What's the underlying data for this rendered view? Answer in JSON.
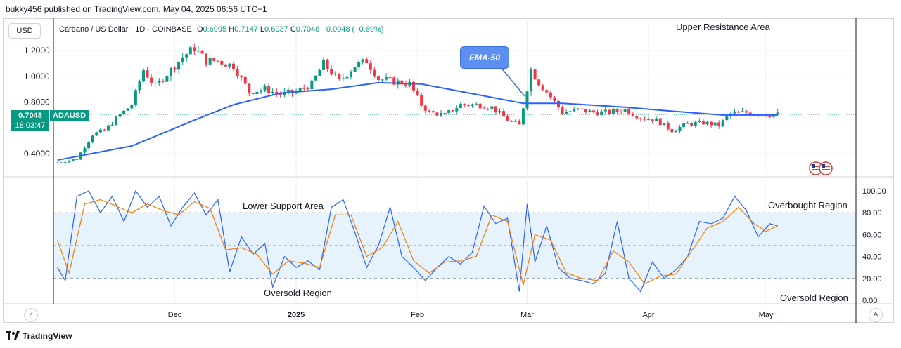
{
  "header": {
    "published_line": "bukky456 published on TradingView.com, May 04, 2025 06:56 UTC+1"
  },
  "toolbar": {
    "currency_button": "USD",
    "z_button": "Z",
    "a_button": "A"
  },
  "legend": {
    "symbol_text": "Cardano / US Dollar · 1D · COINBASE",
    "open_label": "O",
    "open": "0.6995",
    "high_label": "H",
    "high": "0.7147",
    "low_label": "L",
    "low": "0.6937",
    "close_label": "C",
    "close": "0.7048",
    "change": "+0.0048 (+0.69%)"
  },
  "price_tag": {
    "price": "0.7048",
    "countdown": "18:03:47",
    "symbol": "ADAUSD"
  },
  "annotations": {
    "upper_resistance": "Upper Resistance Area",
    "ema_callout": "EMA-50",
    "lower_support": "Lower Support Area",
    "oversold_left": "Oversold Region",
    "overbought": "Overbought Region",
    "oversold_right": "Oversold Region"
  },
  "footer": {
    "brand": "TradingView"
  },
  "colors": {
    "up": "#089981",
    "down": "#f23645",
    "ema": "#2962ff",
    "stoch_k": "#2962ff",
    "stoch_d": "#f57c00",
    "band": "#dceefb",
    "price_line": "#089981"
  },
  "chart_data": [
    {
      "type": "candlestick",
      "title": "",
      "y_ticks": [
        "1.2000",
        "1.0000",
        "0.8000",
        "0.4000"
      ],
      "y_tick_values": [
        1.2,
        1.0,
        0.8,
        0.4
      ],
      "x_labels": [
        "Dec",
        "2025",
        "Feb",
        "Mar",
        "Apr",
        "May"
      ],
      "current_price": 0.7048,
      "close_path": [
        [
          "2024-11-01",
          0.33
        ],
        [
          "2024-11-06",
          0.36
        ],
        [
          "2024-11-10",
          0.55
        ],
        [
          "2024-11-13",
          0.58
        ],
        [
          "2024-11-17",
          0.7
        ],
        [
          "2024-11-20",
          0.78
        ],
        [
          "2024-11-23",
          1.05
        ],
        [
          "2024-11-26",
          0.92
        ],
        [
          "2024-11-30",
          1.05
        ],
        [
          "2024-12-03",
          1.15
        ],
        [
          "2024-12-06",
          1.22
        ],
        [
          "2024-12-09",
          1.12
        ],
        [
          "2024-12-12",
          1.12
        ],
        [
          "2024-12-16",
          1.08
        ],
        [
          "2024-12-20",
          0.88
        ],
        [
          "2024-12-24",
          0.9
        ],
        [
          "2024-12-28",
          0.86
        ],
        [
          "2025-01-01",
          0.88
        ],
        [
          "2025-01-05",
          0.94
        ],
        [
          "2025-01-08",
          1.1
        ],
        [
          "2025-01-12",
          0.96
        ],
        [
          "2025-01-16",
          1.08
        ],
        [
          "2025-01-19",
          1.12
        ],
        [
          "2025-01-22",
          0.98
        ],
        [
          "2025-01-26",
          0.96
        ],
        [
          "2025-01-30",
          0.94
        ],
        [
          "2025-02-02",
          0.78
        ],
        [
          "2025-02-04",
          0.72
        ],
        [
          "2025-02-08",
          0.7
        ],
        [
          "2025-02-12",
          0.78
        ],
        [
          "2025-02-16",
          0.78
        ],
        [
          "2025-02-20",
          0.76
        ],
        [
          "2025-02-24",
          0.66
        ],
        [
          "2025-02-27",
          0.62
        ],
        [
          "2025-03-02",
          1.05
        ],
        [
          "2025-03-04",
          0.95
        ],
        [
          "2025-03-06",
          0.88
        ],
        [
          "2025-03-10",
          0.72
        ],
        [
          "2025-03-14",
          0.74
        ],
        [
          "2025-03-18",
          0.72
        ],
        [
          "2025-03-22",
          0.72
        ],
        [
          "2025-03-26",
          0.74
        ],
        [
          "2025-03-30",
          0.68
        ],
        [
          "2025-04-03",
          0.66
        ],
        [
          "2025-04-07",
          0.58
        ],
        [
          "2025-04-11",
          0.63
        ],
        [
          "2025-04-15",
          0.64
        ],
        [
          "2025-04-19",
          0.62
        ],
        [
          "2025-04-22",
          0.71
        ],
        [
          "2025-04-26",
          0.72
        ],
        [
          "2025-04-30",
          0.7
        ],
        [
          "2025-05-04",
          0.7048
        ]
      ],
      "ema50": [
        [
          "2024-11-01",
          0.35
        ],
        [
          "2024-11-20",
          0.46
        ],
        [
          "2024-12-06",
          0.66
        ],
        [
          "2024-12-16",
          0.78
        ],
        [
          "2024-12-28",
          0.87
        ],
        [
          "2025-01-10",
          0.9
        ],
        [
          "2025-01-22",
          0.95
        ],
        [
          "2025-02-02",
          0.94
        ],
        [
          "2025-02-16",
          0.86
        ],
        [
          "2025-02-28",
          0.79
        ],
        [
          "2025-03-10",
          0.79
        ],
        [
          "2025-03-26",
          0.76
        ],
        [
          "2025-04-07",
          0.73
        ],
        [
          "2025-04-20",
          0.7
        ],
        [
          "2025-05-04",
          0.7
        ]
      ]
    },
    {
      "type": "line",
      "title": "",
      "y_ticks": [
        "100.00",
        "80.00",
        "60.00",
        "40.00",
        "20.00",
        "0.00"
      ],
      "y_tick_values": [
        100,
        80,
        60,
        40,
        20,
        0
      ],
      "ylim": [
        0,
        100
      ],
      "levels": [
        80,
        50,
        20
      ],
      "series": [
        {
          "key": "k",
          "points": [
            [
              "2024-11-01",
              30
            ],
            [
              "2024-11-03",
              18
            ],
            [
              "2024-11-06",
              95
            ],
            [
              "2024-11-09",
              100
            ],
            [
              "2024-11-12",
              80
            ],
            [
              "2024-11-15",
              95
            ],
            [
              "2024-11-18",
              72
            ],
            [
              "2024-11-21",
              100
            ],
            [
              "2024-11-24",
              85
            ],
            [
              "2024-11-27",
              95
            ],
            [
              "2024-11-30",
              68
            ],
            [
              "2024-12-03",
              85
            ],
            [
              "2024-12-06",
              98
            ],
            [
              "2024-12-09",
              78
            ],
            [
              "2024-12-12",
              92
            ],
            [
              "2024-12-15",
              26
            ],
            [
              "2024-12-18",
              58
            ],
            [
              "2024-12-21",
              42
            ],
            [
              "2024-12-24",
              52
            ],
            [
              "2024-12-26",
              12
            ],
            [
              "2024-12-29",
              40
            ],
            [
              "2025-01-01",
              30
            ],
            [
              "2025-01-04",
              36
            ],
            [
              "2025-01-07",
              28
            ],
            [
              "2025-01-10",
              85
            ],
            [
              "2025-01-13",
              92
            ],
            [
              "2025-01-16",
              62
            ],
            [
              "2025-01-19",
              30
            ],
            [
              "2025-01-22",
              50
            ],
            [
              "2025-01-25",
              85
            ],
            [
              "2025-01-28",
              40
            ],
            [
              "2025-01-31",
              30
            ],
            [
              "2025-02-03",
              18
            ],
            [
              "2025-02-06",
              30
            ],
            [
              "2025-02-09",
              40
            ],
            [
              "2025-02-12",
              33
            ],
            [
              "2025-02-15",
              44
            ],
            [
              "2025-02-18",
              86
            ],
            [
              "2025-02-21",
              70
            ],
            [
              "2025-02-24",
              75
            ],
            [
              "2025-02-27",
              8
            ],
            [
              "2025-03-01",
              88
            ],
            [
              "2025-03-03",
              35
            ],
            [
              "2025-03-06",
              68
            ],
            [
              "2025-03-09",
              30
            ],
            [
              "2025-03-12",
              20
            ],
            [
              "2025-03-15",
              18
            ],
            [
              "2025-03-18",
              15
            ],
            [
              "2025-03-21",
              25
            ],
            [
              "2025-03-24",
              72
            ],
            [
              "2025-03-27",
              20
            ],
            [
              "2025-03-30",
              8
            ],
            [
              "2025-04-02",
              35
            ],
            [
              "2025-04-05",
              20
            ],
            [
              "2025-04-08",
              28
            ],
            [
              "2025-04-11",
              40
            ],
            [
              "2025-04-14",
              72
            ],
            [
              "2025-04-17",
              70
            ],
            [
              "2025-04-20",
              75
            ],
            [
              "2025-04-23",
              95
            ],
            [
              "2025-04-26",
              82
            ],
            [
              "2025-04-29",
              58
            ],
            [
              "2025-05-02",
              70
            ],
            [
              "2025-05-04",
              68
            ]
          ]
        },
        {
          "key": "d",
          "points": [
            [
              "2024-11-01",
              55
            ],
            [
              "2024-11-04",
              25
            ],
            [
              "2024-11-08",
              88
            ],
            [
              "2024-11-12",
              92
            ],
            [
              "2024-11-16",
              86
            ],
            [
              "2024-11-20",
              80
            ],
            [
              "2024-11-24",
              88
            ],
            [
              "2024-11-28",
              82
            ],
            [
              "2024-12-02",
              78
            ],
            [
              "2024-12-06",
              90
            ],
            [
              "2024-12-10",
              84
            ],
            [
              "2024-12-14",
              46
            ],
            [
              "2024-12-18",
              48
            ],
            [
              "2024-12-22",
              42
            ],
            [
              "2024-12-26",
              24
            ],
            [
              "2024-12-30",
              36
            ],
            [
              "2025-01-03",
              34
            ],
            [
              "2025-01-07",
              30
            ],
            [
              "2025-01-11",
              78
            ],
            [
              "2025-01-15",
              78
            ],
            [
              "2025-01-19",
              40
            ],
            [
              "2025-01-23",
              48
            ],
            [
              "2025-01-27",
              72
            ],
            [
              "2025-01-31",
              36
            ],
            [
              "2025-02-04",
              25
            ],
            [
              "2025-02-08",
              35
            ],
            [
              "2025-02-12",
              36
            ],
            [
              "2025-02-16",
              40
            ],
            [
              "2025-02-20",
              78
            ],
            [
              "2025-02-24",
              72
            ],
            [
              "2025-02-28",
              14
            ],
            [
              "2025-03-03",
              60
            ],
            [
              "2025-03-07",
              55
            ],
            [
              "2025-03-11",
              25
            ],
            [
              "2025-03-15",
              20
            ],
            [
              "2025-03-19",
              18
            ],
            [
              "2025-03-23",
              45
            ],
            [
              "2025-03-27",
              35
            ],
            [
              "2025-03-31",
              15
            ],
            [
              "2025-04-04",
              22
            ],
            [
              "2025-04-08",
              24
            ],
            [
              "2025-04-12",
              45
            ],
            [
              "2025-04-16",
              66
            ],
            [
              "2025-04-20",
              72
            ],
            [
              "2025-04-24",
              85
            ],
            [
              "2025-04-28",
              70
            ],
            [
              "2025-05-01",
              63
            ],
            [
              "2025-05-04",
              68
            ]
          ]
        }
      ]
    }
  ]
}
